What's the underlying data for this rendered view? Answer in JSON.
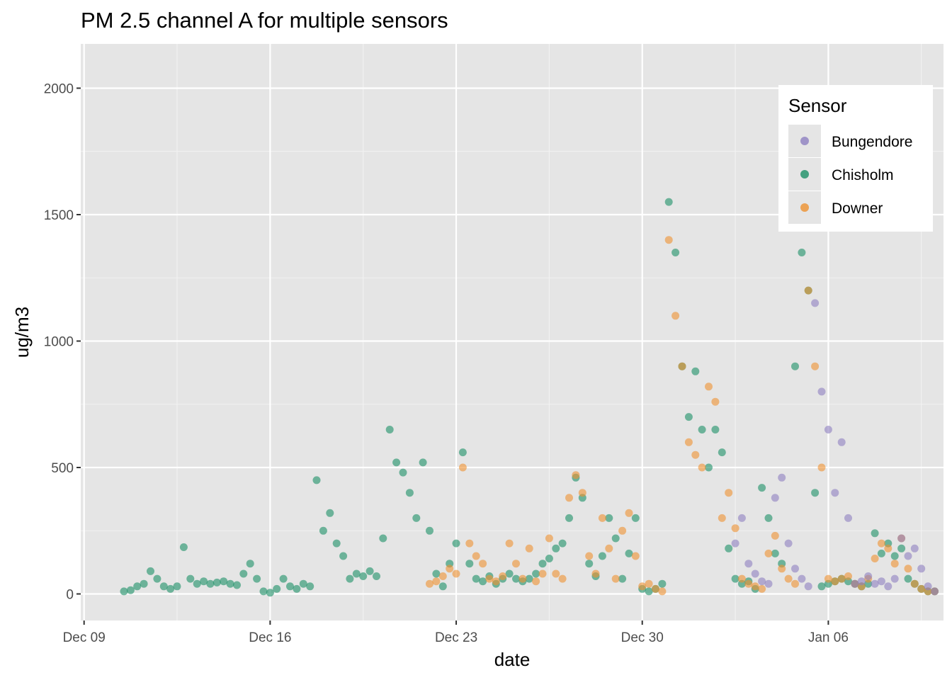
{
  "chart_data": {
    "type": "scatter",
    "title": "PM 2.5 channel A for multiple sensors",
    "xlabel": "date",
    "ylabel": "ug/m3",
    "x_tick_labels": [
      "Dec 09",
      "Dec 16",
      "Dec 23",
      "Dec 30",
      "Jan 06"
    ],
    "x_ticks": [
      "2019-12-09",
      "2019-12-16",
      "2019-12-23",
      "2019-12-30",
      "2020-01-06"
    ],
    "xlim": [
      "2019-12-08T21:00",
      "2020-01-10T08:00"
    ],
    "y_ticks": [
      0,
      500,
      1000,
      1500,
      2000
    ],
    "ylim": [
      -105,
      2175
    ],
    "grid": true,
    "legend": {
      "title": "Sensor",
      "position": "top-right",
      "entries": [
        {
          "name": "Bungendore",
          "color": "#8d7fc0"
        },
        {
          "name": "Chisholm",
          "color": "#1b9066"
        },
        {
          "name": "Downer",
          "color": "#ee9130"
        }
      ]
    },
    "series": [
      {
        "name": "Chisholm",
        "color": "#1b9066",
        "x": [
          "2019-12-10T12:00",
          "2019-12-10T18:00",
          "2019-12-11T00:00",
          "2019-12-11T06:00",
          "2019-12-11T12:00",
          "2019-12-11T18:00",
          "2019-12-12T00:00",
          "2019-12-12T06:00",
          "2019-12-12T12:00",
          "2019-12-12T18:00",
          "2019-12-13T00:00",
          "2019-12-13T06:00",
          "2019-12-13T12:00",
          "2019-12-13T18:00",
          "2019-12-14T00:00",
          "2019-12-14T06:00",
          "2019-12-14T12:00",
          "2019-12-14T18:00",
          "2019-12-15T00:00",
          "2019-12-15T06:00",
          "2019-12-15T12:00",
          "2019-12-15T18:00",
          "2019-12-16T00:00",
          "2019-12-16T06:00",
          "2019-12-16T12:00",
          "2019-12-16T18:00",
          "2019-12-17T00:00",
          "2019-12-17T06:00",
          "2019-12-17T12:00",
          "2019-12-17T18:00",
          "2019-12-18T00:00",
          "2019-12-18T06:00",
          "2019-12-18T12:00",
          "2019-12-18T18:00",
          "2019-12-19T00:00",
          "2019-12-19T06:00",
          "2019-12-19T12:00",
          "2019-12-19T18:00",
          "2019-12-20T00:00",
          "2019-12-20T06:00",
          "2019-12-20T12:00",
          "2019-12-20T18:00",
          "2019-12-21T00:00",
          "2019-12-21T06:00",
          "2019-12-21T12:00",
          "2019-12-21T18:00",
          "2019-12-22T00:00",
          "2019-12-22T06:00",
          "2019-12-22T12:00",
          "2019-12-22T18:00",
          "2019-12-23T00:00",
          "2019-12-23T06:00",
          "2019-12-23T12:00",
          "2019-12-23T18:00",
          "2019-12-24T00:00",
          "2019-12-24T06:00",
          "2019-12-24T12:00",
          "2019-12-24T18:00",
          "2019-12-25T00:00",
          "2019-12-25T06:00",
          "2019-12-25T12:00",
          "2019-12-25T18:00",
          "2019-12-26T00:00",
          "2019-12-26T06:00",
          "2019-12-26T12:00",
          "2019-12-26T18:00",
          "2019-12-27T00:00",
          "2019-12-27T06:00",
          "2019-12-27T12:00",
          "2019-12-27T18:00",
          "2019-12-28T00:00",
          "2019-12-28T06:00",
          "2019-12-28T12:00",
          "2019-12-28T18:00",
          "2019-12-29T00:00",
          "2019-12-29T06:00",
          "2019-12-29T12:00",
          "2019-12-29T18:00",
          "2019-12-30T00:00",
          "2019-12-30T06:00",
          "2019-12-30T12:00",
          "2019-12-30T18:00",
          "2019-12-31T00:00",
          "2019-12-31T06:00",
          "2019-12-31T12:00",
          "2019-12-31T18:00",
          "2020-01-01T00:00",
          "2020-01-01T06:00",
          "2020-01-01T12:00",
          "2020-01-01T18:00",
          "2020-01-02T00:00",
          "2020-01-02T06:00",
          "2020-01-02T12:00",
          "2020-01-02T18:00",
          "2020-01-03T00:00",
          "2020-01-03T06:00",
          "2020-01-03T12:00",
          "2020-01-03T18:00",
          "2020-01-04T00:00",
          "2020-01-04T06:00",
          "2020-01-04T12:00",
          "2020-01-04T18:00",
          "2020-01-05T00:00",
          "2020-01-05T06:00",
          "2020-01-05T12:00",
          "2020-01-05T18:00",
          "2020-01-06T00:00",
          "2020-01-06T06:00",
          "2020-01-06T12:00",
          "2020-01-06T18:00",
          "2020-01-07T00:00",
          "2020-01-07T06:00",
          "2020-01-07T12:00",
          "2020-01-07T18:00",
          "2020-01-08T00:00",
          "2020-01-08T06:00",
          "2020-01-08T12:00",
          "2020-01-08T18:00",
          "2020-01-09T00:00",
          "2020-01-09T06:00",
          "2020-01-09T12:00",
          "2020-01-09T18:00",
          "2020-01-10T00:00"
        ],
        "y": [
          10,
          15,
          30,
          40,
          90,
          60,
          30,
          20,
          30,
          185,
          60,
          40,
          50,
          40,
          45,
          50,
          40,
          35,
          80,
          120,
          60,
          10,
          5,
          20,
          60,
          30,
          20,
          40,
          30,
          450,
          250,
          320,
          200,
          150,
          60,
          80,
          70,
          90,
          70,
          220,
          650,
          520,
          480,
          400,
          300,
          520,
          250,
          80,
          30,
          120,
          200,
          560,
          120,
          60,
          50,
          70,
          40,
          60,
          80,
          60,
          50,
          60,
          80,
          120,
          140,
          180,
          200,
          300,
          460,
          380,
          120,
          70,
          150,
          300,
          220,
          60,
          160,
          300,
          20,
          10,
          20,
          40,
          1550,
          1350,
          900,
          700,
          880,
          650,
          500,
          650,
          560,
          180,
          60,
          40,
          50,
          20,
          420,
          300,
          160,
          120,
          1450,
          900,
          1350,
          1200,
          400,
          30,
          40,
          50,
          60,
          50,
          40,
          30,
          40,
          240,
          160,
          200,
          150,
          180,
          60,
          40,
          20,
          10,
          10
        ]
      },
      {
        "name": "Downer",
        "color": "#ee9130",
        "x": [
          "2019-12-22T00:00",
          "2019-12-22T06:00",
          "2019-12-22T12:00",
          "2019-12-22T18:00",
          "2019-12-23T00:00",
          "2019-12-23T06:00",
          "2019-12-23T12:00",
          "2019-12-23T18:00",
          "2019-12-24T00:00",
          "2019-12-24T06:00",
          "2019-12-24T12:00",
          "2019-12-24T18:00",
          "2019-12-25T00:00",
          "2019-12-25T06:00",
          "2019-12-25T12:00",
          "2019-12-25T18:00",
          "2019-12-26T00:00",
          "2019-12-26T06:00",
          "2019-12-26T12:00",
          "2019-12-26T18:00",
          "2019-12-27T00:00",
          "2019-12-27T06:00",
          "2019-12-27T12:00",
          "2019-12-27T18:00",
          "2019-12-28T00:00",
          "2019-12-28T06:00",
          "2019-12-28T12:00",
          "2019-12-28T18:00",
          "2019-12-29T00:00",
          "2019-12-29T06:00",
          "2019-12-29T12:00",
          "2019-12-29T18:00",
          "2019-12-30T00:00",
          "2019-12-30T06:00",
          "2019-12-30T12:00",
          "2019-12-30T18:00",
          "2019-12-31T00:00",
          "2019-12-31T06:00",
          "2019-12-31T12:00",
          "2019-12-31T18:00",
          "2020-01-01T00:00",
          "2020-01-01T06:00",
          "2020-01-01T12:00",
          "2020-01-01T18:00",
          "2020-01-02T00:00",
          "2020-01-02T06:00",
          "2020-01-02T12:00",
          "2020-01-02T18:00",
          "2020-01-03T00:00",
          "2020-01-03T06:00",
          "2020-01-03T12:00",
          "2020-01-03T18:00",
          "2020-01-04T00:00",
          "2020-01-04T06:00",
          "2020-01-04T12:00",
          "2020-01-04T18:00",
          "2020-01-05T00:00",
          "2020-01-05T06:00",
          "2020-01-05T12:00",
          "2020-01-05T18:00",
          "2020-01-06T00:00",
          "2020-01-06T06:00",
          "2020-01-06T12:00",
          "2020-01-06T18:00",
          "2020-01-07T00:00",
          "2020-01-07T06:00",
          "2020-01-07T12:00",
          "2020-01-07T18:00",
          "2020-01-08T00:00",
          "2020-01-08T06:00",
          "2020-01-08T12:00",
          "2020-01-08T18:00",
          "2020-01-09T00:00",
          "2020-01-09T06:00",
          "2020-01-09T12:00",
          "2020-01-09T18:00",
          "2020-01-10T00:00"
        ],
        "y": [
          40,
          50,
          70,
          100,
          80,
          500,
          200,
          150,
          120,
          60,
          50,
          70,
          200,
          120,
          60,
          180,
          50,
          80,
          220,
          80,
          60,
          380,
          470,
          400,
          150,
          80,
          300,
          180,
          60,
          250,
          320,
          150,
          30,
          40,
          20,
          10,
          1400,
          1100,
          900,
          600,
          550,
          500,
          820,
          760,
          300,
          400,
          260,
          60,
          40,
          30,
          20,
          160,
          230,
          100,
          60,
          40,
          1450,
          1200,
          900,
          500,
          60,
          50,
          60,
          70,
          40,
          30,
          60,
          140,
          200,
          180,
          120,
          220,
          100,
          40,
          20,
          10,
          10
        ]
      },
      {
        "name": "Bungendore",
        "color": "#8d7fc0",
        "x": [
          "2020-01-02T12:00",
          "2020-01-02T18:00",
          "2020-01-03T00:00",
          "2020-01-03T06:00",
          "2020-01-03T12:00",
          "2020-01-03T18:00",
          "2020-01-04T00:00",
          "2020-01-04T06:00",
          "2020-01-04T12:00",
          "2020-01-04T18:00",
          "2020-01-05T00:00",
          "2020-01-05T06:00",
          "2020-01-05T12:00",
          "2020-01-05T18:00",
          "2020-01-06T00:00",
          "2020-01-06T06:00",
          "2020-01-06T12:00",
          "2020-01-06T18:00",
          "2020-01-07T00:00",
          "2020-01-07T06:00",
          "2020-01-07T12:00",
          "2020-01-07T18:00",
          "2020-01-08T00:00",
          "2020-01-08T06:00",
          "2020-01-08T12:00",
          "2020-01-08T18:00",
          "2020-01-09T00:00",
          "2020-01-09T06:00",
          "2020-01-09T12:00",
          "2020-01-09T18:00",
          "2020-01-10T00:00"
        ],
        "y": [
          200,
          300,
          120,
          80,
          50,
          40,
          380,
          460,
          200,
          100,
          60,
          30,
          1150,
          800,
          650,
          400,
          600,
          300,
          40,
          50,
          70,
          40,
          50,
          30,
          60,
          220,
          150,
          180,
          100,
          30,
          10
        ]
      }
    ]
  }
}
